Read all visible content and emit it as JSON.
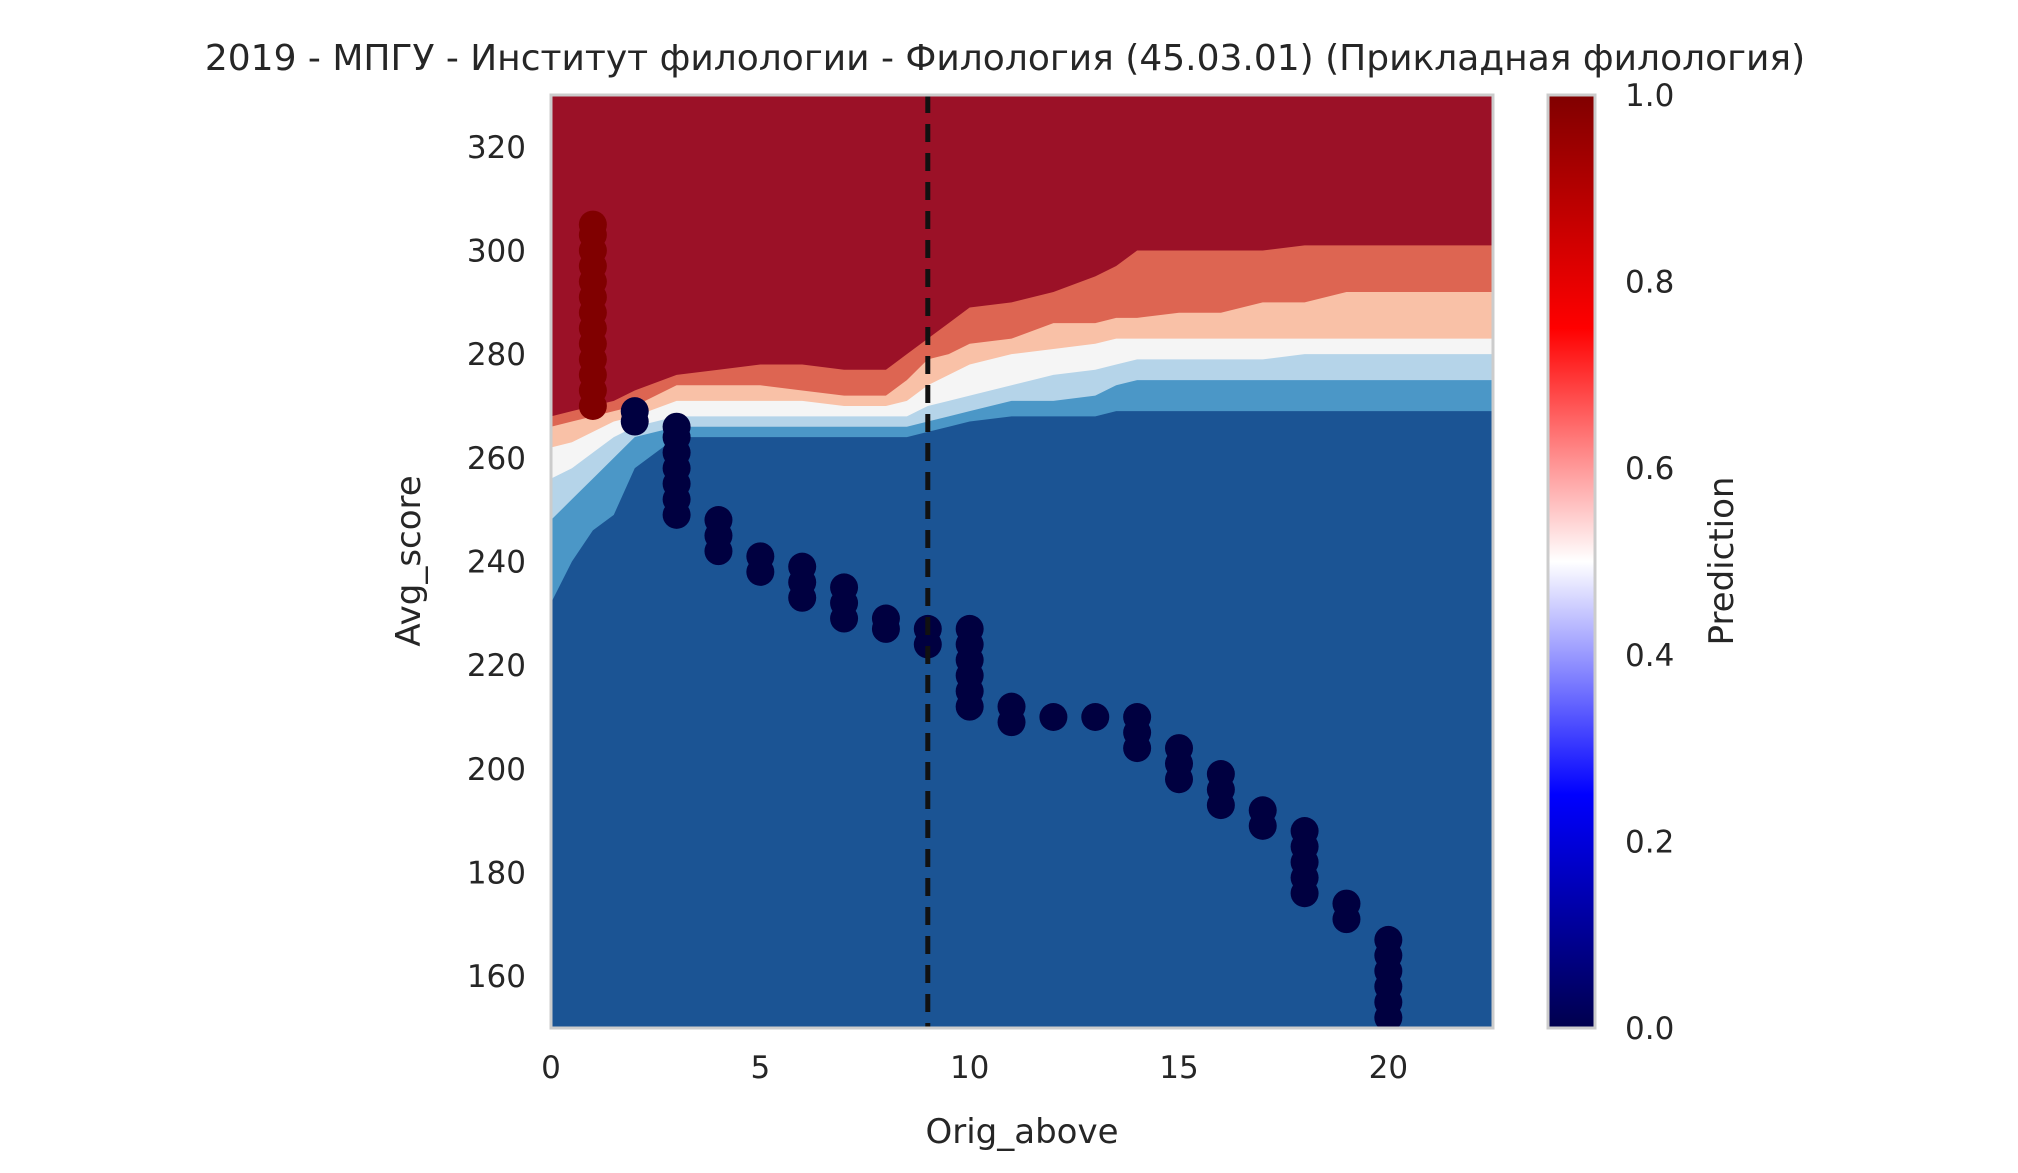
{
  "chart_data": {
    "type": "scatter",
    "title": "2019 - МПГУ - Институт филологии - Филология (45.03.01) (Прикладная филология)",
    "xlabel": "Orig_above",
    "ylabel": "Avg_score",
    "xlim": [
      0,
      22.5
    ],
    "ylim": [
      150,
      330
    ],
    "x_ticks": [
      0,
      5,
      10,
      15,
      20
    ],
    "y_ticks": [
      160,
      180,
      200,
      220,
      240,
      260,
      280,
      300,
      320
    ],
    "grid": false,
    "vline_x": 9,
    "background": "decision-surface",
    "colorbar": {
      "label": "Prediction",
      "colormap": "seismic",
      "range": [
        0,
        1
      ],
      "ticks": [
        "0.0",
        "0.2",
        "0.4",
        "0.6",
        "0.8",
        "1.0"
      ]
    },
    "region_colors": {
      "level_0": "#1b5494",
      "level_1": "#4b97c7",
      "level_2": "#b5d4e9",
      "level_3": "#f5f5f5",
      "level_4": "#f9c1a7",
      "level_5": "#dd6552",
      "level_6": "#9b1127"
    },
    "boundaries": {
      "x": [
        0,
        0.5,
        1,
        1.5,
        2,
        3,
        4,
        5,
        6,
        7,
        8,
        8.5,
        9,
        9.5,
        10,
        11,
        12,
        13,
        13.5,
        14,
        15,
        16,
        17,
        18,
        19,
        20,
        21,
        22.5
      ],
      "b1": [
        232,
        240,
        246,
        249,
        258,
        264,
        264,
        264,
        264,
        264,
        264,
        264,
        265,
        266,
        267,
        268,
        268,
        268,
        269,
        269,
        269,
        269,
        269,
        269,
        269,
        269,
        269,
        269
      ],
      "b2": [
        248,
        252,
        256,
        260,
        264,
        266,
        266,
        266,
        266,
        266,
        266,
        266,
        267,
        268,
        269,
        271,
        271,
        272,
        274,
        275,
        275,
        275,
        275,
        275,
        275,
        275,
        275,
        275
      ],
      "b3": [
        256,
        258,
        261,
        264,
        266,
        268,
        268,
        268,
        268,
        268,
        268,
        268,
        270,
        271,
        272,
        274,
        276,
        277,
        278,
        279,
        279,
        279,
        279,
        280,
        280,
        280,
        280,
        280
      ],
      "b4": [
        262,
        263,
        265,
        267,
        268,
        271,
        271,
        271,
        271,
        270,
        270,
        271,
        274,
        276,
        278,
        280,
        281,
        282,
        283,
        283,
        283,
        283,
        283,
        283,
        283,
        283,
        283,
        283
      ],
      "b5": [
        266,
        267,
        268,
        269,
        270,
        274,
        274,
        274,
        273,
        272,
        272,
        275,
        279,
        280,
        282,
        283,
        286,
        286,
        287,
        287,
        288,
        288,
        290,
        290,
        292,
        292,
        292,
        292
      ],
      "b6": [
        268,
        269,
        270,
        271,
        273,
        276,
        277,
        278,
        278,
        277,
        277,
        280,
        283,
        286,
        289,
        290,
        292,
        295,
        297,
        300,
        300,
        300,
        300,
        301,
        301,
        301,
        301,
        301
      ]
    },
    "series": [
      {
        "class": 1,
        "color": "#800000",
        "points": [
          [
            1,
            270
          ],
          [
            1,
            273
          ],
          [
            1,
            276
          ],
          [
            1,
            279
          ],
          [
            1,
            282
          ],
          [
            1,
            285
          ],
          [
            1,
            288
          ],
          [
            1,
            291
          ],
          [
            1,
            294
          ],
          [
            1,
            297
          ],
          [
            1,
            300
          ],
          [
            1,
            303
          ],
          [
            1,
            305
          ]
        ]
      },
      {
        "class": 0,
        "color": "#000040",
        "points": [
          [
            2,
            267
          ],
          [
            2,
            269
          ],
          [
            3,
            249
          ],
          [
            3,
            252
          ],
          [
            3,
            255
          ],
          [
            3,
            258
          ],
          [
            3,
            261
          ],
          [
            3,
            264
          ],
          [
            3,
            266
          ],
          [
            4,
            242
          ],
          [
            4,
            245
          ],
          [
            4,
            248
          ],
          [
            5,
            238
          ],
          [
            5,
            241
          ],
          [
            6,
            233
          ],
          [
            6,
            236
          ],
          [
            6,
            239
          ],
          [
            7,
            229
          ],
          [
            7,
            232
          ],
          [
            7,
            235
          ],
          [
            8,
            227
          ],
          [
            8,
            229
          ],
          [
            9,
            224
          ],
          [
            9,
            227
          ],
          [
            10,
            212
          ],
          [
            10,
            215
          ],
          [
            10,
            218
          ],
          [
            10,
            221
          ],
          [
            10,
            224
          ],
          [
            10,
            227
          ],
          [
            11,
            209
          ],
          [
            11,
            212
          ],
          [
            12,
            210
          ],
          [
            13,
            210
          ],
          [
            14,
            204
          ],
          [
            14,
            207
          ],
          [
            14,
            210
          ],
          [
            15,
            198
          ],
          [
            15,
            201
          ],
          [
            15,
            204
          ],
          [
            16,
            193
          ],
          [
            16,
            196
          ],
          [
            16,
            199
          ],
          [
            17,
            189
          ],
          [
            17,
            192
          ],
          [
            18,
            176
          ],
          [
            18,
            179
          ],
          [
            18,
            182
          ],
          [
            18,
            185
          ],
          [
            18,
            188
          ],
          [
            19,
            171
          ],
          [
            19,
            174
          ],
          [
            20,
            152
          ],
          [
            20,
            155
          ],
          [
            20,
            158
          ],
          [
            20,
            161
          ],
          [
            20,
            164
          ],
          [
            20,
            167
          ]
        ]
      }
    ]
  }
}
